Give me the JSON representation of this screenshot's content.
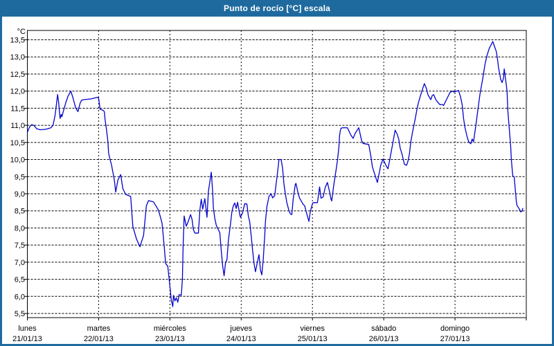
{
  "window": {
    "title": "Punto de rocío [°C] escala"
  },
  "colors": {
    "frame": "#1e6a9e",
    "titlebar_bg": "#1e6a9e",
    "title_text": "#ffffff",
    "plot_background": "#ffffff",
    "plot_border": "#000000",
    "gridline": "#000000",
    "axis_text": "#000000",
    "series_line": "#0000cc"
  },
  "chart_data": {
    "type": "line",
    "title": "Punto de rocío [°C] escala",
    "ylabel_unit": "°C",
    "grid": true,
    "legend": false,
    "y_axis": {
      "min": 5.5,
      "max": 13.5,
      "tick_step": 0.5,
      "tick_labels": [
        "13,5",
        "13,0",
        "12,5",
        "12,0",
        "11,5",
        "11,0",
        "10,5",
        "10,0",
        "9,5",
        "9,0",
        "8,5",
        "8,0",
        "7,5",
        "7,0",
        "6,5",
        "6,0",
        "5,5"
      ]
    },
    "x_axis": {
      "span_days": 7,
      "days": [
        {
          "weekday": "lunes",
          "date": "21/01/13"
        },
        {
          "weekday": "martes",
          "date": "22/01/13"
        },
        {
          "weekday": "miércoles",
          "date": "23/01/13"
        },
        {
          "weekday": "jueves",
          "date": "24/01/13"
        },
        {
          "weekday": "viernes",
          "date": "25/01/13"
        },
        {
          "weekday": "sábado",
          "date": "26/01/13"
        },
        {
          "weekday": "domingo",
          "date": "27/01/13"
        }
      ]
    },
    "series": [
      {
        "name": "Punto de rocío [°C]",
        "color": "#0000cc",
        "points": [
          [
            0,
            10.8
          ],
          [
            0.03,
            10.95
          ],
          [
            0.06,
            11.02
          ],
          [
            0.09,
            11
          ],
          [
            0.13,
            10.9
          ],
          [
            0.18,
            10.87
          ],
          [
            0.24,
            10.88
          ],
          [
            0.29,
            10.9
          ],
          [
            0.33,
            10.93
          ],
          [
            0.36,
            11
          ],
          [
            0.39,
            11.3
          ],
          [
            0.41,
            11.65
          ],
          [
            0.425,
            11.9
          ],
          [
            0.44,
            11.65
          ],
          [
            0.45,
            11.4
          ],
          [
            0.46,
            11.2
          ],
          [
            0.475,
            11.32
          ],
          [
            0.485,
            11.25
          ],
          [
            0.51,
            11.45
          ],
          [
            0.54,
            11.67
          ],
          [
            0.57,
            11.85
          ],
          [
            0.61,
            12
          ],
          [
            0.64,
            11.8
          ],
          [
            0.66,
            11.65
          ],
          [
            0.68,
            11.5
          ],
          [
            0.71,
            11.4
          ],
          [
            0.74,
            11.65
          ],
          [
            0.76,
            11.73
          ],
          [
            0.79,
            11.75
          ],
          [
            0.84,
            11.76
          ],
          [
            0.89,
            11.77
          ],
          [
            0.93,
            11.79
          ],
          [
            0.98,
            11.82
          ],
          [
            1,
            11.8
          ],
          [
            1.02,
            11.47
          ],
          [
            1.06,
            11.44
          ],
          [
            1.08,
            11.4
          ],
          [
            1.09,
            11.17
          ],
          [
            1.11,
            10.87
          ],
          [
            1.13,
            10.53
          ],
          [
            1.14,
            10.19
          ],
          [
            1.16,
            10
          ],
          [
            1.18,
            9.85
          ],
          [
            1.22,
            9.4
          ],
          [
            1.24,
            9.05
          ],
          [
            1.27,
            9.4
          ],
          [
            1.31,
            9.56
          ],
          [
            1.34,
            9.15
          ],
          [
            1.38,
            8.98
          ],
          [
            1.45,
            8.92
          ],
          [
            1.48,
            8.05
          ],
          [
            1.53,
            7.68
          ],
          [
            1.58,
            7.45
          ],
          [
            1.63,
            7.78
          ],
          [
            1.67,
            8.65
          ],
          [
            1.7,
            8.8
          ],
          [
            1.77,
            8.76
          ],
          [
            1.84,
            8.52
          ],
          [
            1.87,
            8.29
          ],
          [
            1.89,
            8.14
          ],
          [
            1.92,
            7.47
          ],
          [
            1.94,
            6.96
          ],
          [
            1.97,
            6.88
          ],
          [
            1.99,
            6.49
          ],
          [
            2,
            6.29
          ],
          [
            2.02,
            5.89
          ],
          [
            2.04,
            5.7
          ],
          [
            2.05,
            6.03
          ],
          [
            2.07,
            5.87
          ],
          [
            2.09,
            5.96
          ],
          [
            2.11,
            5.83
          ],
          [
            2.13,
            6.05
          ],
          [
            2.16,
            6.03
          ],
          [
            2.175,
            6.5
          ],
          [
            2.185,
            7.45
          ],
          [
            2.2,
            8.35
          ],
          [
            2.23,
            8.05
          ],
          [
            2.25,
            8.15
          ],
          [
            2.29,
            8.39
          ],
          [
            2.31,
            8.25
          ],
          [
            2.33,
            7.95
          ],
          [
            2.35,
            7.85
          ],
          [
            2.4,
            7.85
          ],
          [
            2.42,
            8.52
          ],
          [
            2.44,
            8.84
          ],
          [
            2.46,
            8.55
          ],
          [
            2.49,
            8.86
          ],
          [
            2.52,
            8.31
          ],
          [
            2.54,
            9.06
          ],
          [
            2.58,
            9.63
          ],
          [
            2.6,
            9.06
          ],
          [
            2.61,
            8.59
          ],
          [
            2.63,
            8.28
          ],
          [
            2.65,
            8.08
          ],
          [
            2.68,
            7.95
          ],
          [
            2.7,
            7.86
          ],
          [
            2.72,
            7.34
          ],
          [
            2.74,
            6.9
          ],
          [
            2.76,
            6.6
          ],
          [
            2.78,
            6.97
          ],
          [
            2.8,
            7.07
          ],
          [
            2.82,
            7.64
          ],
          [
            2.85,
            8.11
          ],
          [
            2.87,
            8.48
          ],
          [
            2.89,
            8.65
          ],
          [
            2.91,
            8.73
          ],
          [
            2.93,
            8.57
          ],
          [
            2.95,
            8.75
          ],
          [
            2.98,
            8.39
          ],
          [
            2.99,
            8.31
          ],
          [
            3.02,
            8.45
          ],
          [
            3.05,
            8.71
          ],
          [
            3.08,
            8.7
          ],
          [
            3.1,
            8.35
          ],
          [
            3.12,
            8.18
          ],
          [
            3.14,
            7.78
          ],
          [
            3.16,
            7.34
          ],
          [
            3.18,
            6.97
          ],
          [
            3.2,
            6.72
          ],
          [
            3.23,
            7.03
          ],
          [
            3.25,
            7.22
          ],
          [
            3.27,
            6.77
          ],
          [
            3.29,
            6.63
          ],
          [
            3.31,
            7.1
          ],
          [
            3.33,
            7.78
          ],
          [
            3.34,
            8.18
          ],
          [
            3.36,
            8.61
          ],
          [
            3.39,
            8.92
          ],
          [
            3.42,
            9
          ],
          [
            3.44,
            8.88
          ],
          [
            3.47,
            8.95
          ],
          [
            3.5,
            9.46
          ],
          [
            3.52,
            9.8
          ],
          [
            3.53,
            10
          ],
          [
            3.56,
            10
          ],
          [
            3.58,
            9.76
          ],
          [
            3.6,
            9.29
          ],
          [
            3.62,
            8.99
          ],
          [
            3.64,
            8.74
          ],
          [
            3.67,
            8.51
          ],
          [
            3.69,
            8.41
          ],
          [
            3.71,
            8.39
          ],
          [
            3.73,
            8.85
          ],
          [
            3.76,
            9.28
          ],
          [
            3.77,
            9.3
          ],
          [
            3.8,
            9
          ],
          [
            3.82,
            8.87
          ],
          [
            3.85,
            8.76
          ],
          [
            3.87,
            8.69
          ],
          [
            3.89,
            8.65
          ],
          [
            3.92,
            8.41
          ],
          [
            3.95,
            8.19
          ],
          [
            3.97,
            8.48
          ],
          [
            4,
            8.71
          ],
          [
            4.01,
            8.74
          ],
          [
            4.07,
            8.74
          ],
          [
            4.1,
            9.2
          ],
          [
            4.12,
            8.87
          ],
          [
            4.15,
            8.91
          ],
          [
            4.18,
            9.19
          ],
          [
            4.21,
            9.33
          ],
          [
            4.24,
            9.06
          ],
          [
            4.26,
            8.84
          ],
          [
            4.27,
            8.79
          ],
          [
            4.3,
            9.27
          ],
          [
            4.33,
            9.68
          ],
          [
            4.35,
            9.96
          ],
          [
            4.37,
            10.34
          ],
          [
            4.38,
            10.69
          ],
          [
            4.39,
            10.84
          ],
          [
            4.4,
            10.91
          ],
          [
            4.42,
            10.93
          ],
          [
            4.49,
            10.93
          ],
          [
            4.54,
            10.71
          ],
          [
            4.57,
            10.62
          ],
          [
            4.6,
            10.77
          ],
          [
            4.65,
            10.93
          ],
          [
            4.69,
            10.55
          ],
          [
            4.71,
            10.47
          ],
          [
            4.79,
            10.44
          ],
          [
            4.82,
            10.09
          ],
          [
            4.84,
            9.79
          ],
          [
            4.91,
            9.33
          ],
          [
            4.96,
            9.85
          ],
          [
            4.99,
            10.01
          ],
          [
            5.04,
            9.79
          ],
          [
            5.06,
            9.73
          ],
          [
            5.09,
            10.06
          ],
          [
            5.12,
            10.4
          ],
          [
            5.16,
            10.86
          ],
          [
            5.19,
            10.73
          ],
          [
            5.21,
            10.6
          ],
          [
            5.23,
            10.34
          ],
          [
            5.26,
            10.13
          ],
          [
            5.29,
            9.86
          ],
          [
            5.32,
            9.83
          ],
          [
            5.34,
            9.95
          ],
          [
            5.36,
            10.16
          ],
          [
            5.38,
            10.53
          ],
          [
            5.41,
            10.86
          ],
          [
            5.44,
            11.17
          ],
          [
            5.47,
            11.51
          ],
          [
            5.49,
            11.69
          ],
          [
            5.52,
            11.9
          ],
          [
            5.55,
            12.1
          ],
          [
            5.57,
            12.22
          ],
          [
            5.6,
            12.07
          ],
          [
            5.62,
            11.89
          ],
          [
            5.66,
            11.75
          ],
          [
            5.68,
            11.87
          ],
          [
            5.7,
            11.9
          ],
          [
            5.73,
            11.75
          ],
          [
            5.76,
            11.67
          ],
          [
            5.79,
            11.6
          ],
          [
            5.82,
            11.61
          ],
          [
            5.84,
            11.58
          ],
          [
            5.88,
            11.75
          ],
          [
            5.93,
            11.96
          ],
          [
            5.96,
            12
          ],
          [
            5.99,
            11.97
          ],
          [
            6.02,
            12
          ],
          [
            6.05,
            12.02
          ],
          [
            6.08,
            11.81
          ],
          [
            6.1,
            11.6
          ],
          [
            6.12,
            11.2
          ],
          [
            6.14,
            10.93
          ],
          [
            6.17,
            10.66
          ],
          [
            6.19,
            10.53
          ],
          [
            6.22,
            10.46
          ],
          [
            6.24,
            10.6
          ],
          [
            6.26,
            10.52
          ],
          [
            6.29,
            10.96
          ],
          [
            6.32,
            11.44
          ],
          [
            6.35,
            11.91
          ],
          [
            6.39,
            12.38
          ],
          [
            6.42,
            12.78
          ],
          [
            6.45,
            13.05
          ],
          [
            6.48,
            13.25
          ],
          [
            6.53,
            13.45
          ],
          [
            6.58,
            13.15
          ],
          [
            6.6,
            12.88
          ],
          [
            6.61,
            12.68
          ],
          [
            6.63,
            12.48
          ],
          [
            6.64,
            12.35
          ],
          [
            6.66,
            12.25
          ],
          [
            6.68,
            12.38
          ],
          [
            6.69,
            12.65
          ],
          [
            6.73,
            12.01
          ],
          [
            6.74,
            11.47
          ],
          [
            6.76,
            10.93
          ],
          [
            6.78,
            10.4
          ],
          [
            6.79,
            10
          ],
          [
            6.81,
            9.53
          ],
          [
            6.83,
            9.49
          ],
          [
            6.84,
            9.26
          ],
          [
            6.85,
            9.01
          ],
          [
            6.86,
            8.77
          ],
          [
            6.87,
            8.66
          ],
          [
            6.9,
            8.56
          ],
          [
            6.92,
            8.47
          ],
          [
            6.94,
            8.49
          ],
          [
            6.95,
            8.57
          ]
        ]
      }
    ]
  }
}
